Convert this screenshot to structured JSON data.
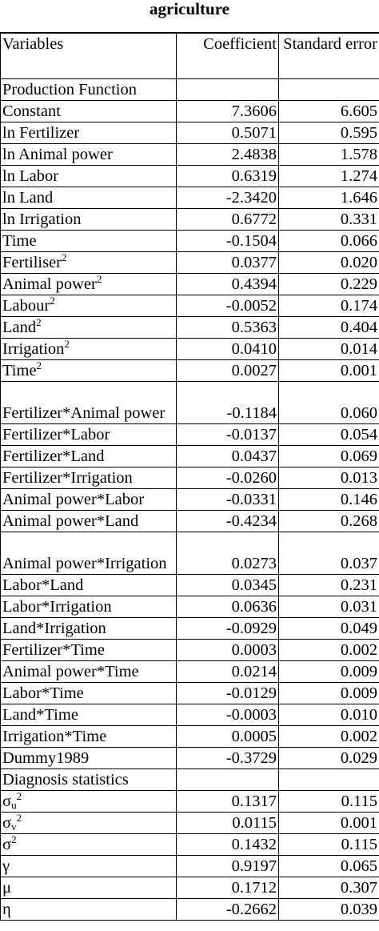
{
  "title": "agriculture",
  "header": {
    "variables": "Variables",
    "coefficient": "Coefficient",
    "standard_error": "Standard error"
  },
  "sections": {
    "production": "Production Function",
    "diagnosis": "Diagnosis statistics"
  },
  "production_rows": [
    {
      "label": "Constant",
      "sup": "",
      "coef": "7.3606",
      "se": "6.605"
    },
    {
      "label": "ln Fertilizer",
      "sup": "",
      "coef": "0.5071",
      "se": "0.595"
    },
    {
      "label": "ln Animal power",
      "sup": "",
      "coef": "2.4838",
      "se": "1.578"
    },
    {
      "label": "ln Labor",
      "sup": "",
      "coef": "0.6319",
      "se": "1.274"
    },
    {
      "label": "ln Land",
      "sup": "",
      "coef": "-2.3420",
      "se": "1.646"
    },
    {
      "label": "ln Irrigation",
      "sup": "",
      "coef": "0.6772",
      "se": "0.331"
    },
    {
      "label": "Time",
      "sup": "",
      "coef": "-0.1504",
      "se": "0.066"
    },
    {
      "label": "Fertiliser",
      "sup": "2",
      "coef": "0.0377",
      "se": "0.020"
    },
    {
      "label": "Animal power",
      "sup": "2",
      "coef": "0.4394",
      "se": "0.229"
    },
    {
      "label": "Labour",
      "sup": "2",
      "coef": "-0.0052",
      "se": "0.174"
    },
    {
      "label": "Land",
      "sup": "2",
      "coef": "0.5363",
      "se": "0.404"
    },
    {
      "label": "Irrigation",
      "sup": "2",
      "coef": "0.0410",
      "se": "0.014"
    },
    {
      "label": "Time",
      "sup": "2",
      "coef": "0.0027",
      "se": "0.001"
    },
    {
      "label": "Fertilizer*Animal power",
      "sup": "",
      "coef": "-0.1184",
      "se": "0.060",
      "tall": true
    },
    {
      "label": "Fertilizer*Labor",
      "sup": "",
      "coef": "-0.0137",
      "se": "0.054"
    },
    {
      "label": "Fertilizer*Land",
      "sup": "",
      "coef": "0.0437",
      "se": "0.069"
    },
    {
      "label": "Fertilizer*Irrigation",
      "sup": "",
      "coef": "-0.0260",
      "se": "0.013"
    },
    {
      "label": "Animal power*Labor",
      "sup": "",
      "coef": "-0.0331",
      "se": "0.146"
    },
    {
      "label": "Animal power*Land",
      "sup": "",
      "coef": "-0.4234",
      "se": "0.268"
    },
    {
      "label": "Animal power*Irrigation",
      "sup": "",
      "coef": "0.0273",
      "se": "0.037",
      "tall": true
    },
    {
      "label": "Labor*Land",
      "sup": "",
      "coef": "0.0345",
      "se": "0.231"
    },
    {
      "label": "Labor*Irrigation",
      "sup": "",
      "coef": "0.0636",
      "se": "0.031"
    },
    {
      "label": "Land*Irrigation",
      "sup": "",
      "coef": "-0.0929",
      "se": "0.049"
    },
    {
      "label": "Fertilizer*Time",
      "sup": "",
      "coef": "0.0003",
      "se": "0.002"
    },
    {
      "label": "Animal power*Time",
      "sup": "",
      "coef": "0.0214",
      "se": "0.009"
    },
    {
      "label": "Labor*Time",
      "sup": "",
      "coef": "-0.0129",
      "se": "0.009"
    },
    {
      "label": "Land*Time",
      "sup": "",
      "coef": "-0.0003",
      "se": "0.010"
    },
    {
      "label": "Irrigation*Time",
      "sup": "",
      "coef": "0.0005",
      "se": "0.002"
    },
    {
      "label": "Dummy1989",
      "sup": "",
      "coef": "-0.3729",
      "se": "0.029"
    }
  ],
  "diagnosis_rows": [
    {
      "sym": "σ",
      "sub": "u",
      "sup": "2",
      "coef": "0.1317",
      "se": "0.115"
    },
    {
      "sym": "σ",
      "sub": "v",
      "sup": "2",
      "coef": "0.0115",
      "se": "0.001"
    },
    {
      "sym": "σ",
      "sub": "",
      "sup": "2",
      "coef": "0.1432",
      "se": "0.115"
    },
    {
      "sym": "γ",
      "sub": "",
      "sup": "",
      "coef": "0.9197",
      "se": "0.065"
    },
    {
      "sym": "μ",
      "sub": "",
      "sup": "",
      "coef": "0.1712",
      "se": "0.307"
    },
    {
      "sym": "η",
      "sub": "",
      "sup": "",
      "coef": "-0.2662",
      "se": "0.039"
    }
  ]
}
